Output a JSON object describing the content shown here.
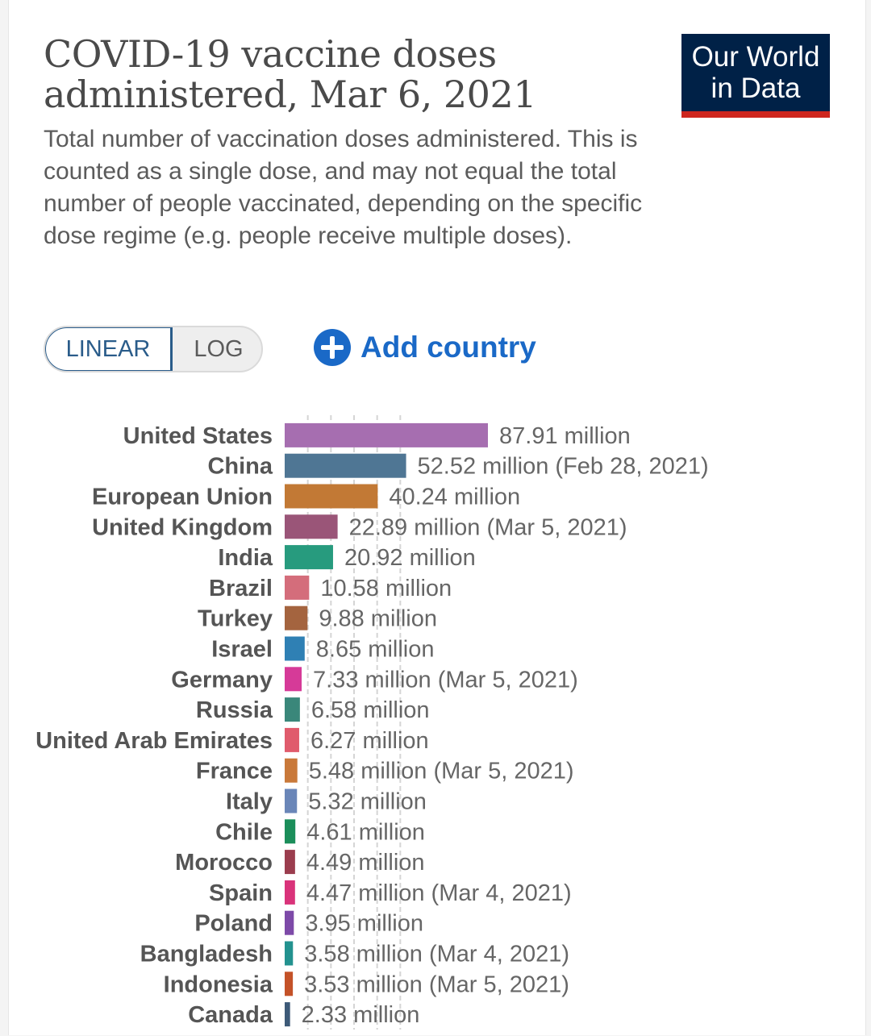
{
  "header": {
    "title": "COVID-19 vaccine doses administered, Mar 6, 2021",
    "subtitle": "Total number of vaccination doses administered. This is counted as a single dose, and may not equal the total number of people vaccinated, depending on the specific dose regime (e.g. people receive multiple doses).",
    "logo_line1": "Our World",
    "logo_line2": "in Data"
  },
  "controls": {
    "scale_linear": "LINEAR",
    "scale_log": "LOG",
    "scale_selected": "LINEAR",
    "add_country": "Add country"
  },
  "colors": {
    "accent": "#1a69c7",
    "logo_bg": "#002147",
    "logo_stripe": "#ce261e",
    "toggle_active": "#2a5c8a"
  },
  "chart_data": {
    "type": "bar",
    "orientation": "horizontal",
    "title": "COVID-19 vaccine doses administered, Mar 6, 2021",
    "grid": true,
    "categories": [
      "United States",
      "China",
      "European Union",
      "United Kingdom",
      "India",
      "Brazil",
      "Turkey",
      "Israel",
      "Germany",
      "Russia",
      "United Arab Emirates",
      "France",
      "Italy",
      "Chile",
      "Morocco",
      "Spain",
      "Poland",
      "Bangladesh",
      "Indonesia",
      "Canada"
    ],
    "values": [
      87.91,
      52.52,
      40.24,
      22.89,
      20.92,
      10.58,
      9.88,
      8.65,
      7.33,
      6.58,
      6.27,
      5.48,
      5.32,
      4.61,
      4.49,
      4.47,
      3.95,
      3.58,
      3.53,
      2.33
    ],
    "unit": "million",
    "labels": [
      "87.91 million",
      "52.52 million (Feb 28, 2021)",
      "40.24 million",
      "22.89 million (Mar 5, 2021)",
      "20.92 million",
      "10.58 million",
      "9.88 million",
      "8.65 million",
      "7.33 million (Mar 5, 2021)",
      "6.58 million",
      "6.27 million",
      "5.48 million (Mar 5, 2021)",
      "5.32 million",
      "4.61 million",
      "4.49 million",
      "4.47 million (Mar 4, 2021)",
      "3.95 million",
      "3.58 million (Mar 4, 2021)",
      "3.53 million (Mar 5, 2021)",
      "2.33 million"
    ],
    "colors": [
      "#a66eb0",
      "#4f7694",
      "#c27935",
      "#9a5578",
      "#279b7e",
      "#d46d7b",
      "#a4643f",
      "#2f80b4",
      "#d63a98",
      "#3a877a",
      "#e05b6c",
      "#c9793a",
      "#6a86b8",
      "#1b8e5a",
      "#9b3d4e",
      "#d9337a",
      "#7d4aa8",
      "#23928f",
      "#c45228",
      "#3d5a78"
    ],
    "xlim": [
      0,
      87.91
    ]
  }
}
